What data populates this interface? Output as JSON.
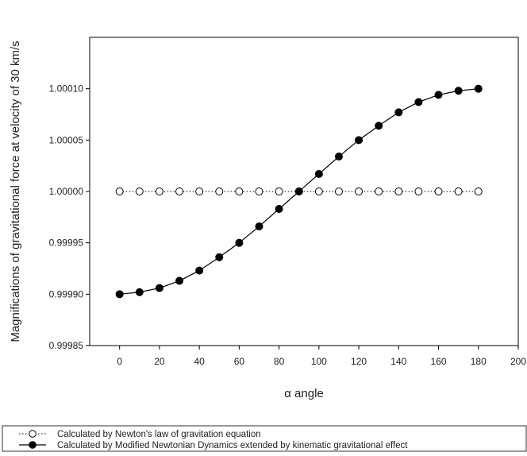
{
  "chart_data": {
    "type": "line",
    "xlabel": "α  angle",
    "ylabel": "Magnifications of gravitational force at velocity of 30 km/s",
    "xlim": [
      -15,
      200
    ],
    "ylim": [
      0.99985,
      1.00015
    ],
    "x_ticks": [
      0,
      20,
      40,
      60,
      80,
      100,
      120,
      140,
      160,
      180,
      200
    ],
    "y_ticks": [
      0.99985,
      0.9999,
      0.99995,
      1.0,
      1.00005,
      1.0001
    ],
    "x_tick_labels": [
      "0",
      "20",
      "40",
      "60",
      "80",
      "100",
      "120",
      "140",
      "160",
      "180",
      "200"
    ],
    "y_tick_labels": [
      "0.99985",
      "0.99990",
      "0.99995",
      "1.00000",
      "1.00005",
      "1.00010"
    ],
    "grid": false,
    "legend_position": "bottom",
    "x": [
      0,
      10,
      20,
      30,
      40,
      50,
      60,
      70,
      80,
      90,
      100,
      110,
      120,
      130,
      140,
      150,
      160,
      170,
      180
    ],
    "series": [
      {
        "name": "Calculated by Newton's law of gravitation equation",
        "marker": "open-circle",
        "line": "dotted",
        "values": [
          1.0,
          1.0,
          1.0,
          1.0,
          1.0,
          1.0,
          1.0,
          1.0,
          1.0,
          1.0,
          1.0,
          1.0,
          1.0,
          1.0,
          1.0,
          1.0,
          1.0,
          1.0,
          1.0
        ]
      },
      {
        "name": "Calculated by Modified Newtonian Dynamics extended by kinematic gravitational effect",
        "marker": "filled-circle",
        "line": "solid",
        "values": [
          0.9999,
          0.999902,
          0.999906,
          0.999913,
          0.999923,
          0.999936,
          0.99995,
          0.999966,
          0.999983,
          1.0,
          1.000017,
          1.000034,
          1.00005,
          1.000064,
          1.000077,
          1.000087,
          1.000094,
          1.000098,
          1.0001
        ]
      }
    ]
  },
  "colors": {
    "axis": "#000000",
    "marker_fill_open": "#ffffff",
    "marker_fill_solid": "#000000"
  }
}
